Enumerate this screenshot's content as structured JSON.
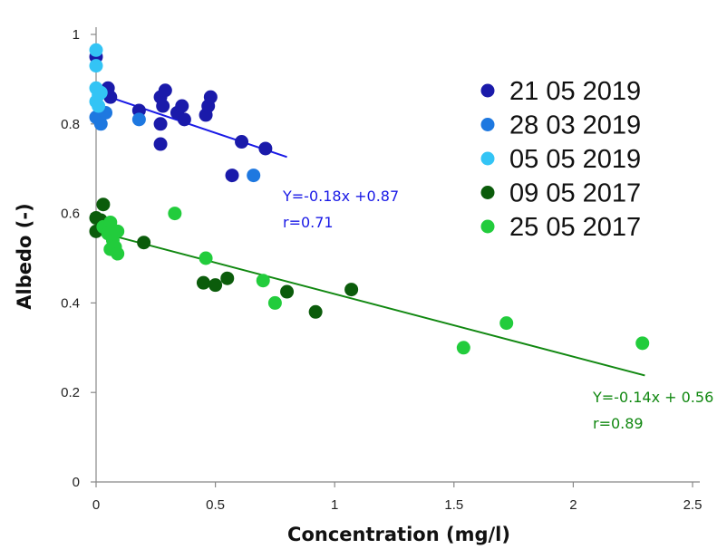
{
  "chart_data": {
    "type": "scatter",
    "xlabel": "Concentration (mg/l)",
    "ylabel": "Albedo (-)",
    "xlim": [
      0,
      2.5
    ],
    "ylim": [
      0,
      1
    ],
    "x_ticks": [
      "0",
      "0.5",
      "1",
      "1.5",
      "2",
      "2.5"
    ],
    "y_ticks": [
      "0",
      "0.2",
      "0.4",
      "0.6",
      "0.8",
      "1"
    ],
    "grid": false,
    "legend_position": "top-right",
    "series": [
      {
        "name": "21 05 2019",
        "color": "#1a1aaa",
        "points": [
          [
            0.0,
            0.95
          ],
          [
            0.05,
            0.88
          ],
          [
            0.06,
            0.86
          ],
          [
            0.18,
            0.83
          ],
          [
            0.27,
            0.86
          ],
          [
            0.28,
            0.84
          ],
          [
            0.29,
            0.875
          ],
          [
            0.27,
            0.8
          ],
          [
            0.27,
            0.755
          ],
          [
            0.34,
            0.825
          ],
          [
            0.36,
            0.84
          ],
          [
            0.37,
            0.81
          ],
          [
            0.46,
            0.82
          ],
          [
            0.47,
            0.84
          ],
          [
            0.48,
            0.86
          ],
          [
            0.57,
            0.685
          ],
          [
            0.61,
            0.76
          ],
          [
            0.71,
            0.745
          ]
        ]
      },
      {
        "name": "28 03 2019",
        "color": "#1e78e0",
        "points": [
          [
            0.0,
            0.815
          ],
          [
            0.02,
            0.8
          ],
          [
            0.04,
            0.825
          ],
          [
            0.18,
            0.81
          ],
          [
            0.66,
            0.685
          ]
        ]
      },
      {
        "name": "05 05 2019",
        "color": "#33c4f5",
        "points": [
          [
            0.0,
            0.965
          ],
          [
            0.0,
            0.93
          ],
          [
            0.0,
            0.88
          ],
          [
            0.01,
            0.865
          ],
          [
            0.0,
            0.85
          ],
          [
            0.01,
            0.84
          ],
          [
            0.02,
            0.87
          ]
        ]
      },
      {
        "name": "09 05 2017",
        "color": "#0b5c0b",
        "points": [
          [
            0.0,
            0.59
          ],
          [
            0.0,
            0.56
          ],
          [
            0.03,
            0.62
          ],
          [
            0.02,
            0.585
          ],
          [
            0.2,
            0.535
          ],
          [
            0.45,
            0.445
          ],
          [
            0.5,
            0.44
          ],
          [
            0.55,
            0.455
          ],
          [
            0.8,
            0.425
          ],
          [
            0.92,
            0.38
          ],
          [
            1.07,
            0.43
          ]
        ]
      },
      {
        "name": "25 05 2017",
        "color": "#22cc3c",
        "points": [
          [
            0.03,
            0.57
          ],
          [
            0.06,
            0.58
          ],
          [
            0.05,
            0.555
          ],
          [
            0.07,
            0.54
          ],
          [
            0.06,
            0.52
          ],
          [
            0.08,
            0.525
          ],
          [
            0.09,
            0.51
          ],
          [
            0.09,
            0.56
          ],
          [
            0.33,
            0.6
          ],
          [
            0.46,
            0.5
          ],
          [
            0.7,
            0.45
          ],
          [
            0.75,
            0.4
          ],
          [
            1.54,
            0.3
          ],
          [
            1.72,
            0.355
          ],
          [
            2.29,
            0.31
          ]
        ]
      }
    ],
    "trendlines": [
      {
        "color": "#1a1ae6",
        "x_range": [
          0.0,
          0.8
        ],
        "slope": -0.18,
        "intercept": 0.87,
        "label_lines": [
          "Y=-0.18x +0.87",
          "r=0.71"
        ]
      },
      {
        "color": "#118811",
        "x_range": [
          0.0,
          2.3
        ],
        "slope": -0.14,
        "intercept": 0.56,
        "label_lines": [
          "Y=-0.14x + 0.56",
          "r=0.89"
        ]
      }
    ]
  }
}
